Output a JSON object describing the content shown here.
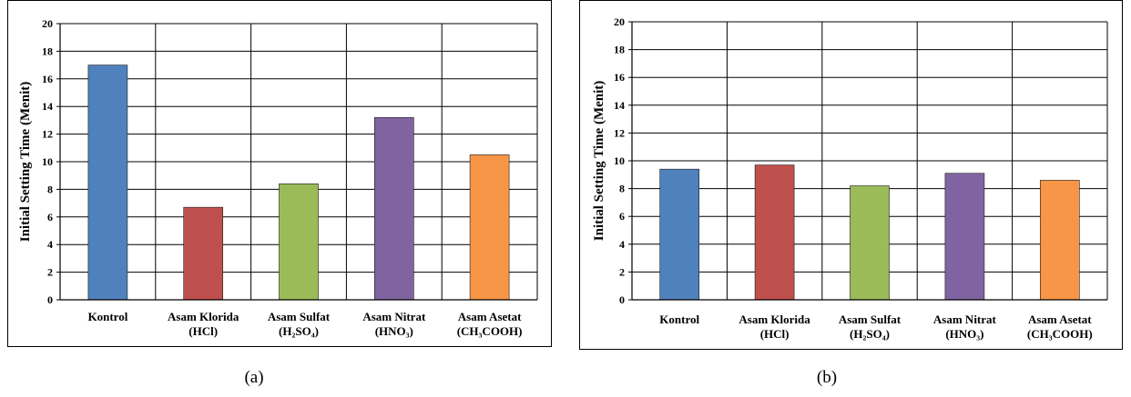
{
  "chart_data": [
    {
      "panel_label": "(a)",
      "type": "bar",
      "title": "",
      "xlabel": "",
      "ylabel": "Initial Setting Time (Menit)",
      "ylim": [
        0,
        20
      ],
      "yticks": [
        "0",
        "2",
        "4",
        "6",
        "8",
        "10",
        "12",
        "14",
        "16",
        "18",
        "20"
      ],
      "grid": true,
      "legend": "none",
      "categories": [
        {
          "line1": "Kontrol",
          "line2": ""
        },
        {
          "line1": "Asam Klorida",
          "line2": "(HCl)"
        },
        {
          "line1": "Asam Sulfat",
          "line2": "(H₂SO₄)"
        },
        {
          "line1": "Asam Nitrat",
          "line2": "(HNO₃)"
        },
        {
          "line1": "Asam Asetat",
          "line2": "(CH₃COOH)"
        }
      ],
      "values": [
        17.0,
        6.7,
        8.4,
        13.2,
        10.5
      ],
      "colors": [
        "#4f81bd",
        "#c0504d",
        "#9bbb59",
        "#8064a2",
        "#f79646"
      ]
    },
    {
      "panel_label": "(b)",
      "type": "bar",
      "title": "",
      "xlabel": "",
      "ylabel": "Initial Setting Time (Menit)",
      "ylim": [
        0,
        20
      ],
      "yticks": [
        "0",
        "2",
        "4",
        "6",
        "8",
        "10",
        "12",
        "14",
        "16",
        "18",
        "20"
      ],
      "grid": true,
      "legend": "none",
      "categories": [
        {
          "line1": "Kontrol",
          "line2": ""
        },
        {
          "line1": "Asam Klorida",
          "line2": "(HCl)"
        },
        {
          "line1": "Asam Sulfat",
          "line2": "(H₂SO₄)"
        },
        {
          "line1": "Asam Nitrat",
          "line2": "(HNO₃)"
        },
        {
          "line1": "Asam Asetat",
          "line2": "(CH₃COOH)"
        }
      ],
      "values": [
        9.4,
        9.7,
        8.2,
        9.1,
        8.6
      ],
      "colors": [
        "#4f81bd",
        "#c0504d",
        "#9bbb59",
        "#8064a2",
        "#f79646"
      ]
    }
  ]
}
